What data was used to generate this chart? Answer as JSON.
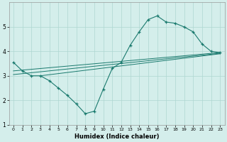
{
  "xlabel": "Humidex (Indice chaleur)",
  "bg_color": "#d4eeeb",
  "line_color": "#1a7a6e",
  "grid_color": "#aed6d1",
  "xlim": [
    -0.5,
    23.5
  ],
  "ylim": [
    1,
    6
  ],
  "yticks": [
    1,
    2,
    3,
    4,
    5
  ],
  "xticks": [
    0,
    1,
    2,
    3,
    4,
    5,
    6,
    7,
    8,
    9,
    10,
    11,
    12,
    13,
    14,
    15,
    16,
    17,
    18,
    19,
    20,
    21,
    22,
    23
  ],
  "line_main": {
    "x": [
      0,
      1,
      2,
      3,
      4,
      5,
      6,
      7,
      8,
      9,
      10,
      11,
      12,
      13,
      14,
      15,
      16,
      17,
      18,
      19,
      20,
      21,
      22,
      23
    ],
    "y": [
      3.55,
      3.2,
      3.0,
      3.0,
      2.8,
      2.5,
      2.2,
      1.85,
      1.45,
      1.55,
      2.45,
      3.3,
      3.55,
      4.25,
      4.8,
      5.3,
      5.45,
      5.2,
      5.15,
      5.0,
      4.8,
      4.3,
      4.0,
      3.95
    ]
  },
  "line_trend1": {
    "x": [
      0,
      23
    ],
    "y": [
      3.2,
      3.95
    ]
  },
  "line_trend2": {
    "x": [
      3,
      23
    ],
    "y": [
      3.0,
      3.9
    ]
  },
  "line_trend3": {
    "x": [
      0,
      23
    ],
    "y": [
      3.05,
      3.92
    ]
  }
}
